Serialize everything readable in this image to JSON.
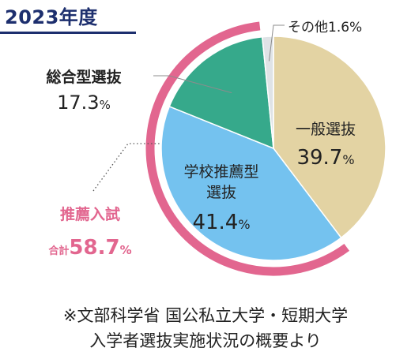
{
  "chart_data": {
    "type": "pie",
    "title": "2023年度",
    "slices": [
      {
        "label": "一般選抜",
        "line2": "",
        "value": 39.7,
        "display": "39.7",
        "unit": "%",
        "color": "#e3d3a3"
      },
      {
        "label": "学校推薦型",
        "line2": "選抜",
        "value": 41.4,
        "display": "41.4",
        "unit": "%",
        "color": "#74c2ef"
      },
      {
        "label": "総合型選抜",
        "line2": "",
        "value": 17.3,
        "display": "17.3",
        "unit": "%",
        "color": "#36a98b"
      },
      {
        "label": "その他",
        "line2": "",
        "value": 1.6,
        "display": "1.6",
        "unit": "%",
        "color": "#dfe3e6"
      }
    ],
    "group": {
      "label": "推薦入試",
      "prefix": "合計",
      "value": 58.7,
      "display": "58.7",
      "unit": "%",
      "color": "#e2668f"
    },
    "source_lines": [
      "※文部科学省 国公私立大学・短期大学",
      "入学者選抜実施状況の概要より"
    ]
  }
}
